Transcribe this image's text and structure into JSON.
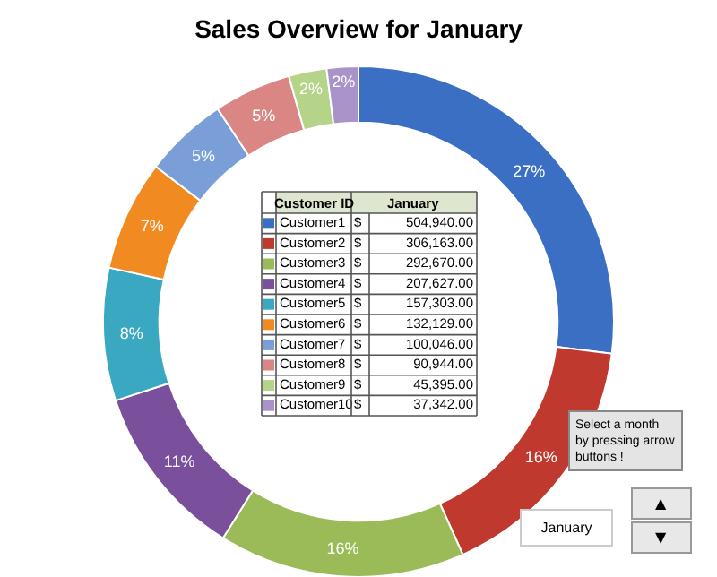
{
  "chart_data": {
    "type": "donut",
    "title": "Sales Overview for January",
    "legend_title": "Customer ID",
    "categories": [
      "Customer1",
      "Customer2",
      "Customer3",
      "Customer4",
      "Customer5",
      "Customer6",
      "Customer7",
      "Customer8",
      "Customer9",
      "Customer10"
    ],
    "values": [
      27.0,
      16.3,
      15.6,
      11.1,
      8.4,
      7.0,
      5.3,
      4.9,
      2.4,
      2.0
    ],
    "colors": [
      "#3a6fc4",
      "#c0392f",
      "#9bbb59",
      "#7a4f9c",
      "#3aa8c1",
      "#f28a22",
      "#7a9fd8",
      "#d98684",
      "#b5d48a",
      "#a993c9"
    ],
    "value_labels": [
      "27%",
      "16%",
      "16%",
      "11%",
      "8%",
      "7%",
      "5%",
      "5%",
      "2%",
      "2%"
    ],
    "legend": "center",
    "annotations": [
      "January",
      "$",
      "Select a month by pressing arrow buttons !",
      "January",
      "▲",
      "▼",
      "504,940.00",
      "306,163.00",
      "292,670.00",
      "207,627.00",
      "157,303.00",
      "132,129.00",
      "100,046.00",
      "90,944.00",
      "45,395.00",
      "37,342.00"
    ]
  }
}
